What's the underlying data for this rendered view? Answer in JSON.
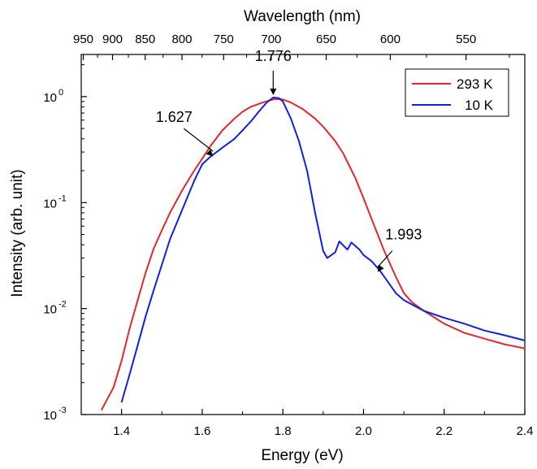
{
  "chart_data": {
    "type": "line",
    "x_axis": {
      "label": "Energy (eV)",
      "range": [
        1.3,
        2.4
      ],
      "ticks": [
        1.4,
        1.6,
        1.8,
        2.0,
        2.2,
        2.4
      ],
      "tick_labels": [
        "1.4",
        "1.6",
        "1.8",
        "2.0",
        "2.2",
        "2.4"
      ]
    },
    "top_axis": {
      "label": "Wavelength (nm)",
      "ticks_nm": [
        950,
        900,
        850,
        800,
        750,
        700,
        650,
        600,
        550
      ],
      "tick_labels": [
        "950",
        "900",
        "850",
        "800",
        "750",
        "700",
        "650",
        "600",
        "550"
      ]
    },
    "y_axis": {
      "label": "Intensity (arb. unit)",
      "scale": "log",
      "range": [
        0.001,
        2.5
      ],
      "ticks": [
        0.001,
        0.01,
        0.1,
        1
      ],
      "tick_labels": [
        {
          "base": "10",
          "exp": "-3"
        },
        {
          "base": "10",
          "exp": "-2"
        },
        {
          "base": "10",
          "exp": "-1"
        },
        {
          "base": "10",
          "exp": "0"
        }
      ]
    },
    "series": [
      {
        "name": "293 K",
        "color": "#e8262a",
        "x": [
          1.35,
          1.38,
          1.4,
          1.42,
          1.44,
          1.46,
          1.48,
          1.5,
          1.52,
          1.55,
          1.58,
          1.6,
          1.62,
          1.65,
          1.68,
          1.7,
          1.72,
          1.75,
          1.78,
          1.8,
          1.82,
          1.85,
          1.88,
          1.9,
          1.93,
          1.95,
          1.98,
          2.0,
          2.02,
          2.05,
          2.08,
          2.1,
          2.12,
          2.15,
          2.2,
          2.25,
          2.3,
          2.35,
          2.4
        ],
        "y": [
          0.0011,
          0.0018,
          0.0032,
          0.0065,
          0.012,
          0.022,
          0.037,
          0.055,
          0.08,
          0.13,
          0.2,
          0.26,
          0.34,
          0.48,
          0.62,
          0.72,
          0.8,
          0.88,
          0.95,
          0.94,
          0.88,
          0.76,
          0.62,
          0.52,
          0.38,
          0.29,
          0.17,
          0.11,
          0.07,
          0.036,
          0.02,
          0.014,
          0.0115,
          0.0095,
          0.0072,
          0.0059,
          0.0052,
          0.0046,
          0.0042
        ]
      },
      {
        "name": "10 K",
        "color": "#1020e0",
        "x": [
          1.4,
          1.42,
          1.44,
          1.46,
          1.48,
          1.5,
          1.52,
          1.55,
          1.58,
          1.6,
          1.62,
          1.65,
          1.68,
          1.7,
          1.72,
          1.74,
          1.76,
          1.776,
          1.79,
          1.8,
          1.82,
          1.84,
          1.86,
          1.88,
          1.9,
          1.91,
          1.93,
          1.94,
          1.96,
          1.97,
          1.99,
          2.0,
          2.02,
          2.04,
          2.06,
          2.08,
          2.1,
          2.15,
          2.2,
          2.25,
          2.3,
          2.35,
          2.4
        ],
        "y": [
          0.0013,
          0.0024,
          0.0045,
          0.0085,
          0.015,
          0.026,
          0.045,
          0.085,
          0.16,
          0.23,
          0.27,
          0.33,
          0.4,
          0.48,
          0.58,
          0.72,
          0.88,
          0.98,
          0.97,
          0.9,
          0.62,
          0.38,
          0.2,
          0.08,
          0.035,
          0.03,
          0.034,
          0.043,
          0.036,
          0.042,
          0.036,
          0.032,
          0.028,
          0.023,
          0.018,
          0.014,
          0.012,
          0.0095,
          0.0082,
          0.0072,
          0.0062,
          0.0056,
          0.005
        ]
      }
    ],
    "annotations": [
      {
        "text": "1.776",
        "x": 1.776,
        "y": 0.98
      },
      {
        "text": "1.627",
        "x": 1.627,
        "y": 0.26
      },
      {
        "text": "1.993",
        "x": 2.035,
        "y": 0.021
      }
    ],
    "legend": {
      "position": "top-right"
    },
    "grid": false
  }
}
